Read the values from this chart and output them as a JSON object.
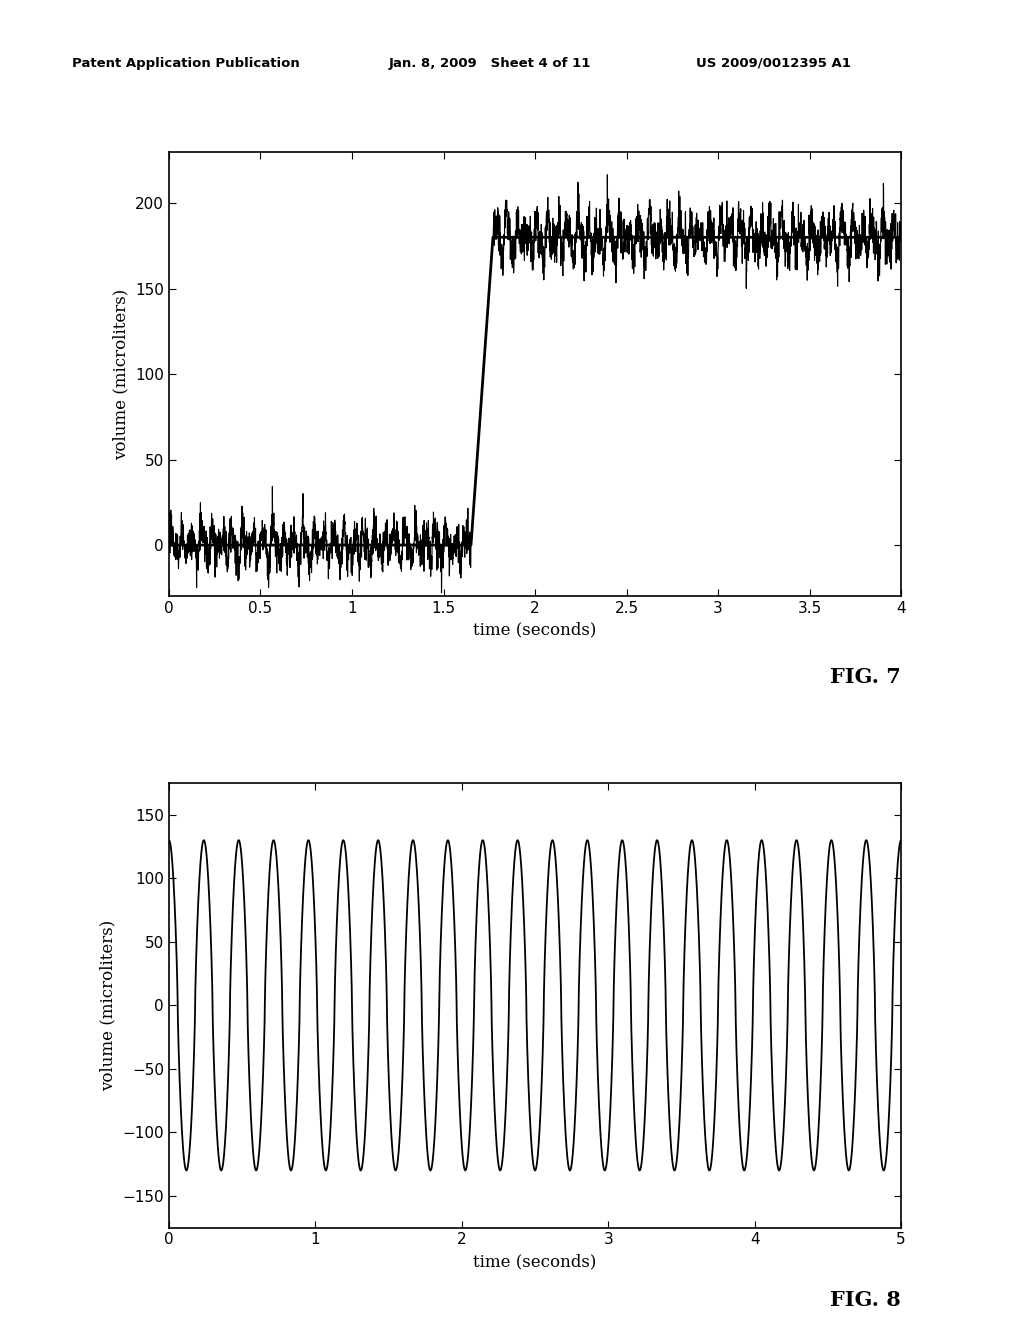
{
  "fig7": {
    "title": "FIG. 7",
    "xlabel": "time (seconds)",
    "ylabel": "volume (microliters)",
    "xlim": [
      0,
      4
    ],
    "ylim": [
      -30,
      230
    ],
    "yticks": [
      0,
      50,
      100,
      150,
      200
    ],
    "xticks": [
      0,
      0.5,
      1,
      1.5,
      2,
      2.5,
      3,
      3.5,
      4
    ],
    "step_time": 1.65,
    "plateau": 180,
    "noise_before_amp": 14,
    "noise_after_amp": 16,
    "noise_freq": 18
  },
  "fig8": {
    "title": "FIG. 8",
    "xlabel": "time (seconds)",
    "ylabel": "volume (microliters)",
    "xlim": [
      0,
      5
    ],
    "ylim": [
      -175,
      175
    ],
    "yticks": [
      -150,
      -100,
      -50,
      0,
      50,
      100,
      150
    ],
    "xticks": [
      0,
      1,
      2,
      3,
      4,
      5
    ],
    "amplitude": 130,
    "freq": 4.2
  },
  "header_left": "Patent Application Publication",
  "header_mid": "Jan. 8, 2009   Sheet 4 of 11",
  "header_right": "US 2009/0012395 A1",
  "background_color": "#ffffff",
  "line_color": "#000000"
}
